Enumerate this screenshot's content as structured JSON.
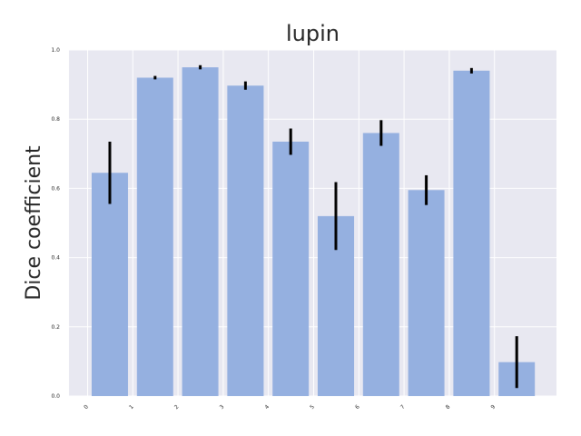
{
  "chart_data": {
    "type": "bar",
    "title": "lupin",
    "xlabel": "",
    "ylabel": "Dice coefficient",
    "categories": [
      "0",
      "1",
      "2",
      "3",
      "4",
      "5",
      "6",
      "7",
      "8",
      "9"
    ],
    "values": [
      0.645,
      0.92,
      0.95,
      0.897,
      0.735,
      0.52,
      0.76,
      0.595,
      0.94,
      0.098
    ],
    "error": [
      0.09,
      0.005,
      0.006,
      0.012,
      0.038,
      0.098,
      0.037,
      0.043,
      0.008,
      0.075
    ],
    "ylim": [
      0.0,
      1.0
    ],
    "yticks": [
      "0.0",
      "0.2",
      "0.4",
      "0.6",
      "0.8",
      "1.0"
    ],
    "grid": true,
    "bar_color": "#95b0e0",
    "error_color": "#000000",
    "background_color": "#e8e8f1",
    "grid_color": "#ffffff"
  }
}
